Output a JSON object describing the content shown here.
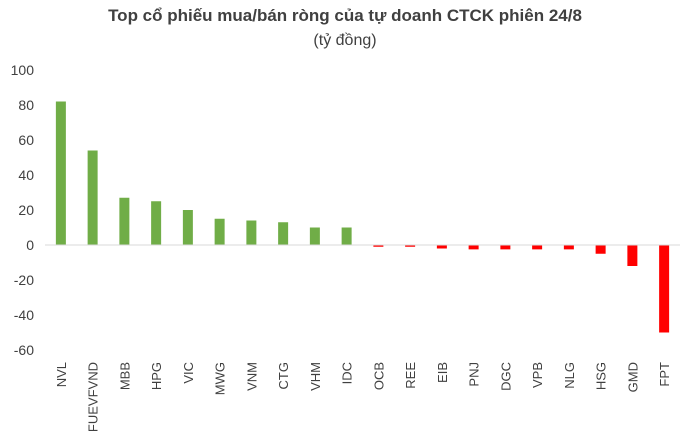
{
  "chart_data": {
    "type": "bar",
    "title": "Top cổ phiếu mua/bán ròng của tự doanh CTCK phiên 24/8",
    "subtitle": "(tỷ đồng)",
    "xlabel": "",
    "ylabel": "",
    "ylim": [
      -60,
      100
    ],
    "yticks": [
      100,
      80,
      60,
      40,
      20,
      0,
      -20,
      -40,
      -60
    ],
    "grid": false,
    "legend": "none",
    "colors": {
      "positive": "#70ad47",
      "negative": "#ff0000"
    },
    "categories": [
      "NVL",
      "FUEVFVND",
      "MBB",
      "HPG",
      "VIC",
      "MWG",
      "VNM",
      "CTG",
      "VHM",
      "IDC",
      "OCB",
      "REE",
      "EIB",
      "PNJ",
      "DGC",
      "VPB",
      "NLG",
      "HSG",
      "GMD",
      "FPT"
    ],
    "values": [
      82,
      54,
      27,
      25,
      20,
      15,
      14,
      13,
      10,
      10,
      -1,
      -1,
      -2,
      -2.5,
      -2.5,
      -2.5,
      -2.5,
      -5,
      -12,
      -50
    ]
  }
}
